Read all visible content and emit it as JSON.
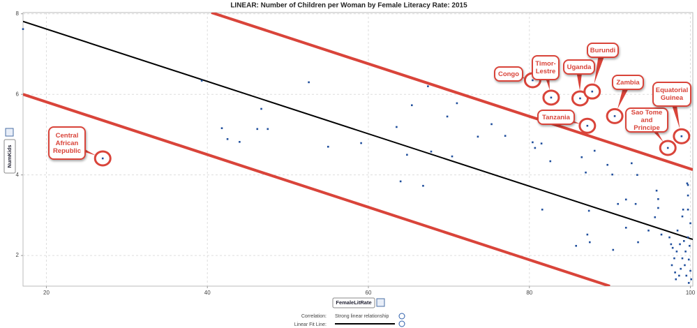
{
  "chart_data": {
    "type": "scatter",
    "title": "LINEAR:  Number of Children per Woman by Female Literacy Rate:  2015",
    "x_label": "FemaleLitRate",
    "y_label": "NumKids",
    "xlim": [
      17.1,
      100.3
    ],
    "ylim": [
      1.24,
      8.03
    ],
    "xticks": [
      20,
      40,
      60,
      80,
      100
    ],
    "yticks": [
      2,
      4,
      6,
      8
    ],
    "grid": true,
    "series": [
      {
        "color": "#1f4e9c",
        "x": [
          17.1,
          27.0,
          39.3,
          41.8,
          42.5,
          44.0,
          46.2,
          46.7,
          47.5,
          52.6,
          55.0,
          59.1,
          63.5,
          64.0,
          64.8,
          65.4,
          66.8,
          67.4,
          67.8,
          69.8,
          70.4,
          71.0,
          73.6,
          75.3,
          77.0,
          80.4,
          80.4,
          80.7,
          81.5,
          81.6,
          82.6,
          82.7,
          85.8,
          86.3,
          86.5,
          87.0,
          87.2,
          87.2,
          87.4,
          87.5,
          87.8,
          88.1,
          89.7,
          90.4,
          90.6,
          90.3,
          91.0,
          92.0,
          92.0,
          92.7,
          93.2,
          93.4,
          93.5,
          94.8,
          95.6,
          95.8,
          96.0,
          96.0,
          96.4,
          97.2,
          98.9,
          97.4,
          97.6,
          97.7,
          98.0,
          98.3,
          98.1,
          98.4,
          98.7,
          99.0,
          99.1,
          99.3,
          99.5,
          99.6,
          99.7,
          99.7,
          99.8,
          99.9,
          100.0,
          100.1,
          100.0,
          99.7,
          99.4,
          99.0,
          98.6,
          98.2,
          98.8,
          99.2,
          99.7,
          99.8,
          97.8
        ],
        "values": [
          7.62,
          4.41,
          6.34,
          5.16,
          4.89,
          4.82,
          5.14,
          5.64,
          5.14,
          6.3,
          4.7,
          4.79,
          5.19,
          3.84,
          4.5,
          5.73,
          3.73,
          6.2,
          4.58,
          5.45,
          4.46,
          5.78,
          4.95,
          5.26,
          4.97,
          6.35,
          4.81,
          4.67,
          4.78,
          3.14,
          4.34,
          5.92,
          2.24,
          5.9,
          4.44,
          4.06,
          5.22,
          2.52,
          3.11,
          2.33,
          6.07,
          4.6,
          4.25,
          2.14,
          5.46,
          4.01,
          3.28,
          3.39,
          2.69,
          4.29,
          3.28,
          4.0,
          2.33,
          2.62,
          2.95,
          3.61,
          3.4,
          3.18,
          2.52,
          4.67,
          4.96,
          2.45,
          2.28,
          1.76,
          1.93,
          2.1,
          1.58,
          2.62,
          2.28,
          2.97,
          3.14,
          1.76,
          1.5,
          3.79,
          3.49,
          2.45,
          1.9,
          2.24,
          1.62,
          1.41,
          2.8,
          3.14,
          2.1,
          1.93,
          1.5,
          1.41,
          1.67,
          2.36,
          3.75,
          1.32,
          2.19
        ]
      }
    ],
    "fit_line": {
      "x": [
        17.1,
        100.3
      ],
      "values": [
        7.81,
        2.4
      ],
      "color": "#000000"
    },
    "bands": [
      {
        "x": [
          40.5,
          100.3
        ],
        "values": [
          8.03,
          4.13
        ],
        "color": "#d9443a"
      },
      {
        "x": [
          17.1,
          90.0
        ],
        "values": [
          6.0,
          1.24
        ],
        "color": "#d9443a"
      }
    ],
    "annotations": [
      {
        "text": "Central African Republic"
      },
      {
        "text": "Congo"
      },
      {
        "text": "Timor-Lestre"
      },
      {
        "text": "Uganda"
      },
      {
        "text": "Burundi"
      },
      {
        "text": "Zambia"
      },
      {
        "text": "Tanzania"
      },
      {
        "text": "Sao Tome and Principe"
      },
      {
        "text": "Equatorial Guinea"
      }
    ],
    "footer": {
      "correlation_label": "Correlation:",
      "correlation_value": "Strong linear relationship",
      "fit_line_label": "Linear Fit Line:"
    }
  }
}
